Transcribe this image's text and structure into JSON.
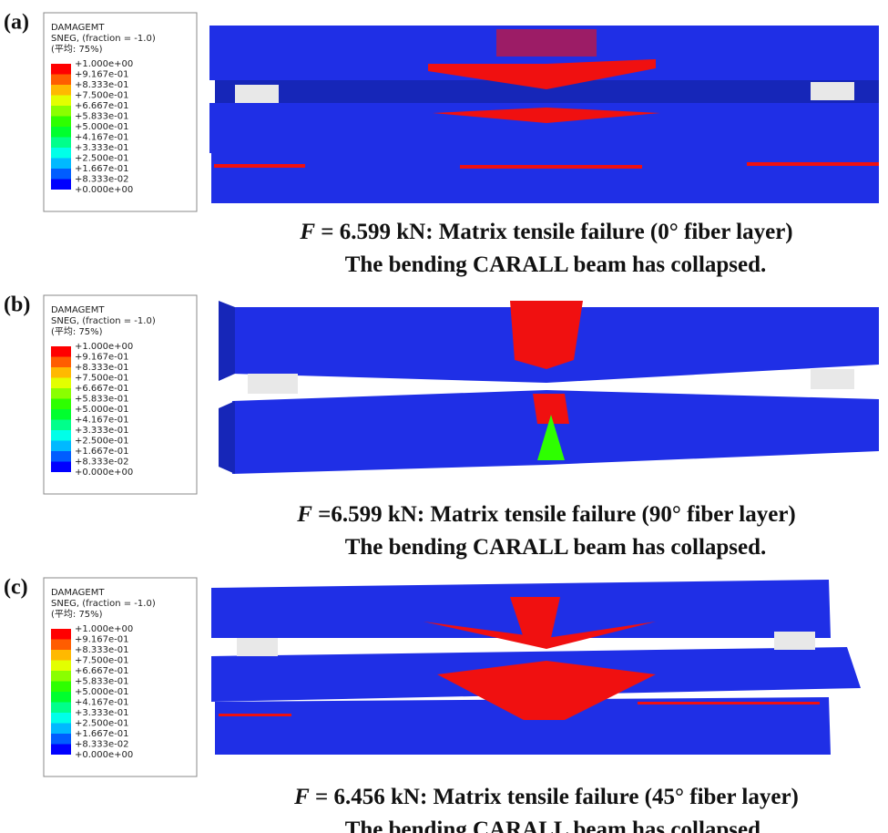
{
  "panels": [
    {
      "label": "(a)",
      "legend": {
        "title": [
          "DAMAGEMT",
          "SNEG, (fraction = -1.0)",
          "(平均: 75%)"
        ],
        "levels": [
          "+1.000e+00",
          "+9.167e-01",
          "+8.333e-01",
          "+7.500e-01",
          "+6.667e-01",
          "+5.833e-01",
          "+5.000e-01",
          "+4.167e-01",
          "+3.333e-01",
          "+2.500e-01",
          "+1.667e-01",
          "+8.333e-02",
          "+0.000e+00"
        ]
      },
      "caption": {
        "symbol": "F",
        "text": " = 6.599 kN: Matrix tensile failure (0° fiber layer)",
        "line2": "The bending CARALL beam has collapsed."
      }
    },
    {
      "label": "(b)",
      "legend": {
        "title": [
          "DAMAGEMT",
          "SNEG, (fraction = -1.0)",
          "(平均: 75%)"
        ],
        "levels": [
          "+1.000e+00",
          "+9.167e-01",
          "+8.333e-01",
          "+7.500e-01",
          "+6.667e-01",
          "+5.833e-01",
          "+5.000e-01",
          "+4.167e-01",
          "+3.333e-01",
          "+2.500e-01",
          "+1.667e-01",
          "+8.333e-02",
          "+0.000e+00"
        ]
      },
      "caption": {
        "symbol": "F",
        "text": " =6.599 kN: Matrix tensile failure (90° fiber layer)",
        "line2": "The bending CARALL beam has collapsed."
      }
    },
    {
      "label": "(c)",
      "legend": {
        "title": [
          "DAMAGEMT",
          "SNEG, (fraction = -1.0)",
          "(平均: 75%)"
        ],
        "levels": [
          "+1.000e+00",
          "+9.167e-01",
          "+8.333e-01",
          "+7.500e-01",
          "+6.667e-01",
          "+5.833e-01",
          "+5.000e-01",
          "+4.167e-01",
          "+3.333e-01",
          "+2.500e-01",
          "+1.667e-01",
          "+8.333e-02",
          "+0.000e+00"
        ]
      },
      "caption": {
        "symbol": "F",
        "text": " = 6.456 kN: Matrix tensile failure (45° fiber layer)",
        "line2": "The bending CARALL beam has collapsed."
      }
    }
  ]
}
